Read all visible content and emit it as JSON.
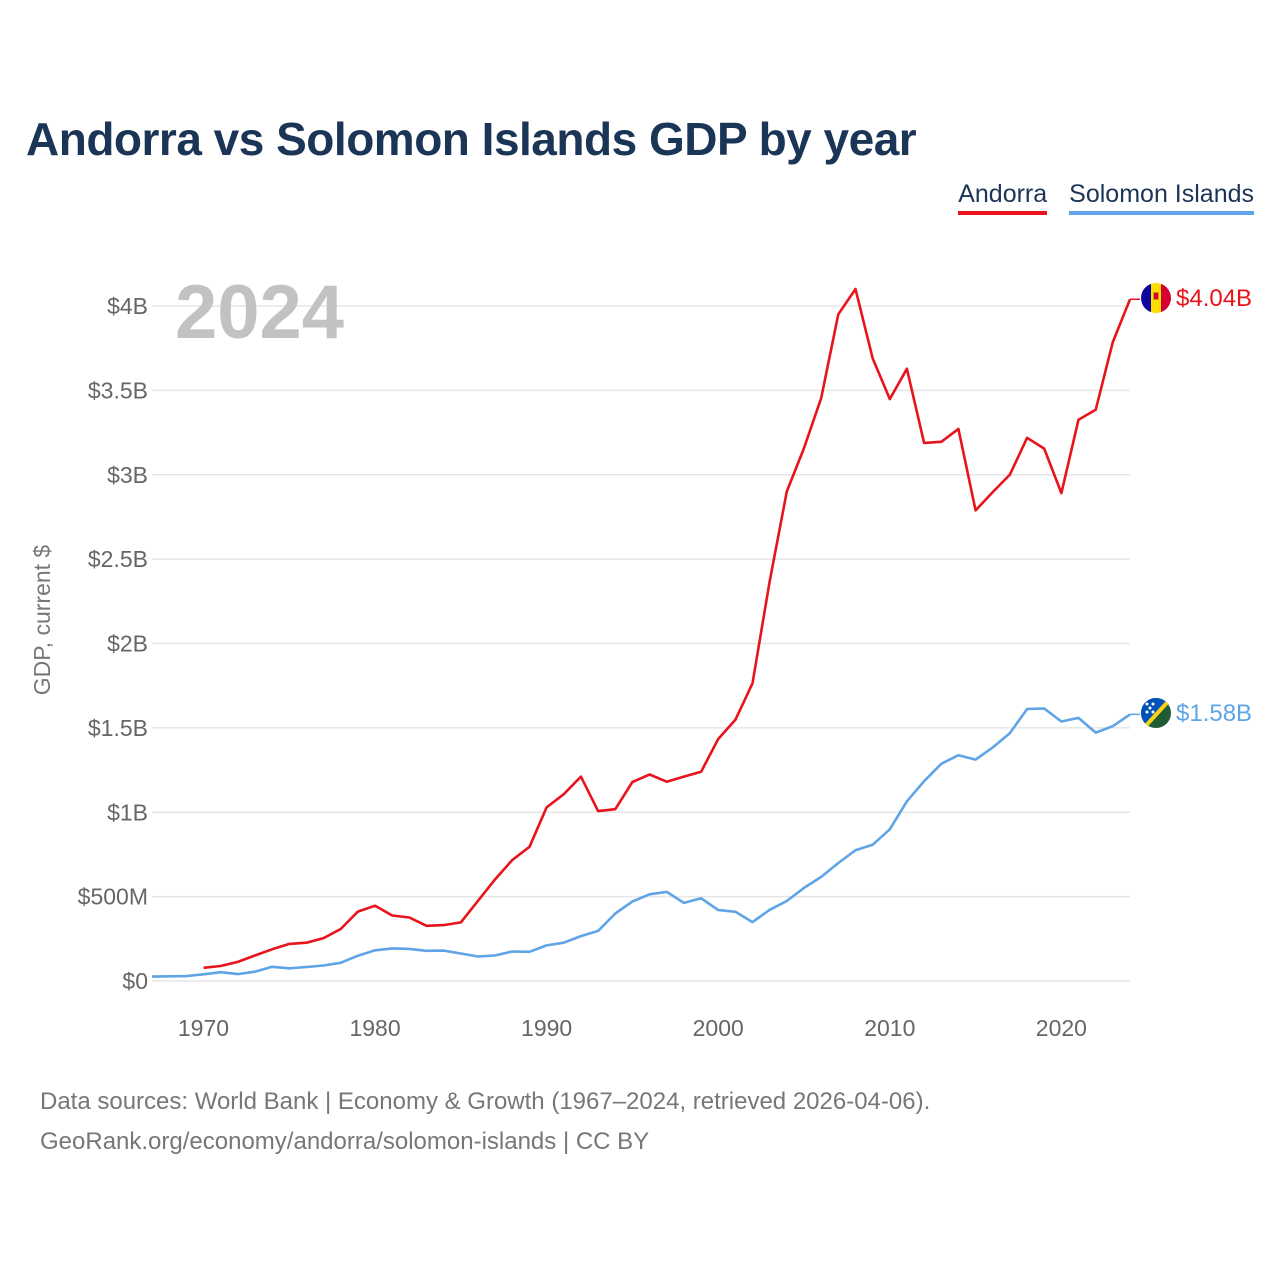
{
  "title": "Andorra vs Solomon Islands GDP by year",
  "legend": {
    "andorra": "Andorra",
    "solomon": "Solomon Islands"
  },
  "colors": {
    "andorra": "#e8131b",
    "solomon": "#5fa4e6",
    "title": "#1b3557"
  },
  "year_label": "2024",
  "footer": {
    "line1": "Data sources: World Bank | Economy & Growth (1967–2024, retrieved 2026-04-06).",
    "line2": "GeoRank.org/economy/andorra/solomon-islands | CC BY"
  },
  "chart_data": {
    "type": "line",
    "title": "Andorra vs Solomon Islands GDP by year",
    "xlabel": "",
    "ylabel": "GDP, current $",
    "xlim": [
      1967,
      2024
    ],
    "ylim": [
      0,
      4000000000
    ],
    "x_ticks": [
      1970,
      1980,
      1990,
      2000,
      2010,
      2020
    ],
    "x_tick_labels": [
      "1970",
      "1980",
      "1990",
      "2000",
      "2010",
      "2020"
    ],
    "y_ticks": [
      0,
      500000000,
      1000000000,
      1500000000,
      2000000000,
      2500000000,
      3000000000,
      3500000000,
      4000000000
    ],
    "y_tick_labels": [
      "$0",
      "$500M",
      "$1B",
      "$1.5B",
      "$2B",
      "$2.5B",
      "$3B",
      "$3.5B",
      "$4B"
    ],
    "grid": true,
    "legend_position": "top-right",
    "series": [
      {
        "name": "Andorra",
        "key": "andorra",
        "end_label": "$4.04B",
        "x": [
          1970,
          1971,
          1972,
          1973,
          1974,
          1975,
          1976,
          1977,
          1978,
          1979,
          1980,
          1981,
          1982,
          1983,
          1984,
          1985,
          1986,
          1987,
          1988,
          1989,
          1990,
          1991,
          1992,
          1993,
          1994,
          1995,
          1996,
          1997,
          1998,
          1999,
          2000,
          2001,
          2002,
          2003,
          2004,
          2005,
          2006,
          2007,
          2008,
          2009,
          2010,
          2011,
          2012,
          2013,
          2014,
          2015,
          2016,
          2017,
          2018,
          2019,
          2020,
          2021,
          2022,
          2023,
          2024
        ],
        "values": [
          78000000,
          89000000,
          113000000,
          151000000,
          188000000,
          220000000,
          227000000,
          254000000,
          308000000,
          411000000,
          446000000,
          388000000,
          376000000,
          327000000,
          331000000,
          347000000,
          475000000,
          603000000,
          717000000,
          795000000,
          1029000000,
          1107000000,
          1211000000,
          1007000000,
          1018000000,
          1179000000,
          1224000000,
          1181000000,
          1211000000,
          1240000000,
          1434000000,
          1548000000,
          1764000000,
          2369000000,
          2901000000,
          3158000000,
          3455000000,
          3951000000,
          4101000000,
          3691000000,
          3448000000,
          3628000000,
          3189000000,
          3195000000,
          3272000000,
          2789000000,
          2897000000,
          3001000000,
          3219000000,
          3155000000,
          2891000000,
          3326000000,
          3385000000,
          3786000000,
          4040000000
        ]
      },
      {
        "name": "Solomon Islands",
        "key": "solomon",
        "end_label": "$1.58B",
        "x": [
          1967,
          1968,
          1969,
          1970,
          1971,
          1972,
          1973,
          1974,
          1975,
          1976,
          1977,
          1978,
          1979,
          1980,
          1981,
          1982,
          1983,
          1984,
          1985,
          1986,
          1987,
          1988,
          1989,
          1990,
          1991,
          1992,
          1993,
          1994,
          1995,
          1996,
          1997,
          1998,
          1999,
          2000,
          2001,
          2002,
          2003,
          2004,
          2005,
          2006,
          2007,
          2008,
          2009,
          2010,
          2011,
          2012,
          2013,
          2014,
          2015,
          2016,
          2017,
          2018,
          2019,
          2020,
          2021,
          2022,
          2023,
          2024
        ],
        "values": [
          26000000,
          28000000,
          29000000,
          40000000,
          52000000,
          41000000,
          55000000,
          84000000,
          75000000,
          83000000,
          92000000,
          108000000,
          150000000,
          182000000,
          193000000,
          190000000,
          179000000,
          180000000,
          163000000,
          145000000,
          152000000,
          175000000,
          173000000,
          211000000,
          227000000,
          266000000,
          297000000,
          400000000,
          471000000,
          514000000,
          528000000,
          463000000,
          490000000,
          421000000,
          410000000,
          349000000,
          422000000,
          474000000,
          552000000,
          617000000,
          699000000,
          775000000,
          807000000,
          899000000,
          1065000000,
          1184000000,
          1287000000,
          1338000000,
          1312000000,
          1384000000,
          1469000000,
          1612000000,
          1615000000,
          1538000000,
          1559000000,
          1472000000,
          1510000000,
          1580000000
        ]
      }
    ]
  }
}
